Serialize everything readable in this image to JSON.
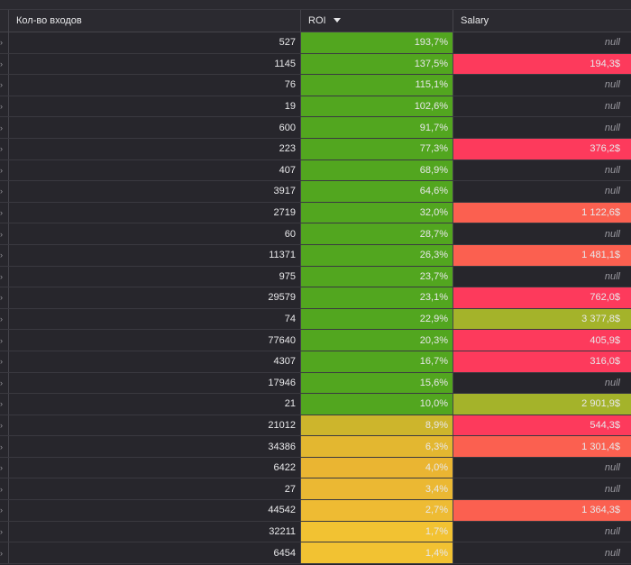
{
  "header": {
    "col_count_label": "Кол-во входов",
    "col_roi_label": "ROI",
    "col_salary_label": "Salary"
  },
  "colors": {
    "green": "#52a61f",
    "yellow_green": "#a4b32a",
    "olive": "#cdb52c",
    "yellow": "#eab532",
    "yellow_light": "#f2c232",
    "pink": "#fd3a5c",
    "coral": "#fb6050",
    "dark": "#27262c"
  },
  "rows": [
    {
      "count": "527",
      "roi": "193,7%",
      "roi_color": "#52a61f",
      "salary": "null",
      "salary_color": ""
    },
    {
      "count": "1145",
      "roi": "137,5%",
      "roi_color": "#52a61f",
      "salary": "194,3$",
      "salary_color": "#fd3a5c"
    },
    {
      "count": "76",
      "roi": "115,1%",
      "roi_color": "#52a61f",
      "salary": "null",
      "salary_color": ""
    },
    {
      "count": "19",
      "roi": "102,6%",
      "roi_color": "#52a61f",
      "salary": "null",
      "salary_color": ""
    },
    {
      "count": "600",
      "roi": "91,7%",
      "roi_color": "#52a61f",
      "salary": "null",
      "salary_color": ""
    },
    {
      "count": "223",
      "roi": "77,3%",
      "roi_color": "#52a61f",
      "salary": "376,2$",
      "salary_color": "#fd3a5c"
    },
    {
      "count": "407",
      "roi": "68,9%",
      "roi_color": "#52a61f",
      "salary": "null",
      "salary_color": ""
    },
    {
      "count": "3917",
      "roi": "64,6%",
      "roi_color": "#52a61f",
      "salary": "null",
      "salary_color": ""
    },
    {
      "count": "2719",
      "roi": "32,0%",
      "roi_color": "#52a61f",
      "salary": "1 122,6$",
      "salary_color": "#fb6050"
    },
    {
      "count": "60",
      "roi": "28,7%",
      "roi_color": "#52a61f",
      "salary": "null",
      "salary_color": ""
    },
    {
      "count": "11371",
      "roi": "26,3%",
      "roi_color": "#52a61f",
      "salary": "1 481,1$",
      "salary_color": "#fb6050"
    },
    {
      "count": "975",
      "roi": "23,7%",
      "roi_color": "#52a61f",
      "salary": "null",
      "salary_color": ""
    },
    {
      "count": "29579",
      "roi": "23,1%",
      "roi_color": "#52a61f",
      "salary": "762,0$",
      "salary_color": "#fd3a5c"
    },
    {
      "count": "74",
      "roi": "22,9%",
      "roi_color": "#52a61f",
      "salary": "3 377,8$",
      "salary_color": "#a4b32a"
    },
    {
      "count": "77640",
      "roi": "20,3%",
      "roi_color": "#52a61f",
      "salary": "405,9$",
      "salary_color": "#fd3a5c"
    },
    {
      "count": "4307",
      "roi": "16,7%",
      "roi_color": "#52a61f",
      "salary": "316,0$",
      "salary_color": "#fd3a5c"
    },
    {
      "count": "17946",
      "roi": "15,6%",
      "roi_color": "#52a61f",
      "salary": "null",
      "salary_color": ""
    },
    {
      "count": "21",
      "roi": "10,0%",
      "roi_color": "#52a61f",
      "salary": "2 901,9$",
      "salary_color": "#a4b32a"
    },
    {
      "count": "21012",
      "roi": "8,9%",
      "roi_color": "#cdb52c",
      "salary": "544,3$",
      "salary_color": "#fd3a5c"
    },
    {
      "count": "34386",
      "roi": "6,3%",
      "roi_color": "#e3b730",
      "salary": "1 301,4$",
      "salary_color": "#fb6050"
    },
    {
      "count": "6422",
      "roi": "4,0%",
      "roi_color": "#eab532",
      "salary": "null",
      "salary_color": ""
    },
    {
      "count": "27",
      "roi": "3,4%",
      "roi_color": "#ebb833",
      "salary": "null",
      "salary_color": ""
    },
    {
      "count": "44542",
      "roi": "2,7%",
      "roi_color": "#eebb33",
      "salary": "1 364,3$",
      "salary_color": "#fb6050"
    },
    {
      "count": "32211",
      "roi": "1,7%",
      "roi_color": "#f2c232",
      "salary": "null",
      "salary_color": ""
    },
    {
      "count": "6454",
      "roi": "1,4%",
      "roi_color": "#f2c232",
      "salary": "null",
      "salary_color": ""
    }
  ]
}
